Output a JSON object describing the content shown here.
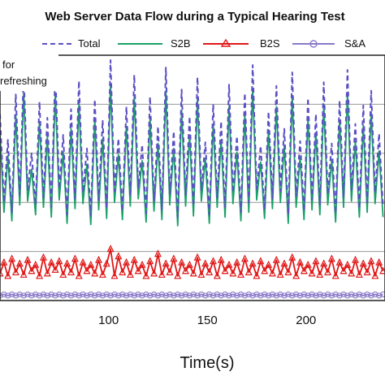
{
  "chart_data": {
    "type": "line",
    "title": "Web Server Data Flow during a Typical Hearing Test",
    "xlabel": "Time(s)",
    "ylabel": "",
    "xlim": [
      45,
      240
    ],
    "ylim": [
      0,
      20
    ],
    "x_ticks": [
      "100",
      "150",
      "200"
    ],
    "x_tick_values": [
      100,
      150,
      200
    ],
    "grid": "horizontal",
    "legend_position": "top",
    "annotation_lines": [
      "for",
      "refreshing"
    ],
    "series": [
      {
        "name": "Total",
        "color": "#5a4fc4",
        "style": "dashed",
        "marker": "none",
        "x": [
          45,
          47,
          49,
          51,
          53,
          55,
          57,
          59,
          61,
          63,
          65,
          67,
          69,
          71,
          73,
          75,
          77,
          79,
          81,
          83,
          85,
          87,
          89,
          91,
          93,
          95,
          97,
          99,
          101,
          103,
          105,
          107,
          109,
          111,
          113,
          115,
          117,
          119,
          121,
          123,
          125,
          127,
          129,
          131,
          133,
          135,
          137,
          139,
          141,
          143,
          145,
          147,
          149,
          151,
          153,
          155,
          157,
          159,
          161,
          163,
          165,
          167,
          169,
          171,
          173,
          175,
          177,
          179,
          181,
          183,
          185,
          187,
          189,
          191,
          193,
          195,
          197,
          199,
          201,
          203,
          205,
          207,
          209,
          211,
          213,
          215,
          217,
          219,
          221,
          223,
          225,
          227,
          229,
          231,
          233,
          235,
          237,
          239
        ],
        "values": [
          15.2,
          8.0,
          13.1,
          7.2,
          16.8,
          8.6,
          18.6,
          9.0,
          12.0,
          7.8,
          16.2,
          8.4,
          14.9,
          7.6,
          18.8,
          9.1,
          13.5,
          7.0,
          15.6,
          8.3,
          17.9,
          8.8,
          12.4,
          6.9,
          16.4,
          8.2,
          14.7,
          7.5,
          19.6,
          8.9,
          13.2,
          7.3,
          15.8,
          8.5,
          18.4,
          9.2,
          12.7,
          7.1,
          16.6,
          8.1,
          14.2,
          7.4,
          19.0,
          8.7,
          13.8,
          6.8,
          17.2,
          8.6,
          15.0,
          7.7,
          18.2,
          9.0,
          12.9,
          7.0,
          16.0,
          8.4,
          14.6,
          7.6,
          17.6,
          8.8,
          13.4,
          7.2,
          16.9,
          8.0,
          19.2,
          9.1,
          12.6,
          7.4,
          15.4,
          8.3,
          17.5,
          8.9,
          14.0,
          7.0,
          18.6,
          8.5,
          13.0,
          7.3,
          16.5,
          8.2,
          15.2,
          7.8,
          17.8,
          8.7,
          12.8,
          7.1,
          16.3,
          8.4,
          18.8,
          9.0,
          14.4,
          7.5,
          15.9,
          8.0,
          17.1,
          8.8,
          13.6,
          7.6
        ]
      },
      {
        "name": "S2B",
        "color": "#1aa067",
        "style": "solid",
        "marker": "none",
        "x": [
          45,
          47,
          49,
          51,
          53,
          55,
          57,
          59,
          61,
          63,
          65,
          67,
          69,
          71,
          73,
          75,
          77,
          79,
          81,
          83,
          85,
          87,
          89,
          91,
          93,
          95,
          97,
          99,
          101,
          103,
          105,
          107,
          109,
          111,
          113,
          115,
          117,
          119,
          121,
          123,
          125,
          127,
          129,
          131,
          133,
          135,
          137,
          139,
          141,
          143,
          145,
          147,
          149,
          151,
          153,
          155,
          157,
          159,
          161,
          163,
          165,
          167,
          169,
          171,
          173,
          175,
          177,
          179,
          181,
          183,
          185,
          187,
          189,
          191,
          193,
          195,
          197,
          199,
          201,
          203,
          205,
          207,
          209,
          211,
          213,
          215,
          217,
          219,
          221,
          223,
          225,
          227,
          229,
          231,
          233,
          235,
          237,
          239
        ],
        "values": [
          13.6,
          7.2,
          11.8,
          6.5,
          15.1,
          7.8,
          16.9,
          8.1,
          10.7,
          7.0,
          14.6,
          7.6,
          13.4,
          6.8,
          16.9,
          8.2,
          12.1,
          6.3,
          14.0,
          7.5,
          16.1,
          7.9,
          11.1,
          6.2,
          14.8,
          7.4,
          13.2,
          6.7,
          17.6,
          8.0,
          11.9,
          6.6,
          14.2,
          7.7,
          16.6,
          8.3,
          11.4,
          6.4,
          14.9,
          7.3,
          12.8,
          6.6,
          17.1,
          7.8,
          12.4,
          6.1,
          15.5,
          7.7,
          13.5,
          6.9,
          16.4,
          8.1,
          11.6,
          6.3,
          14.4,
          7.6,
          13.1,
          6.8,
          15.8,
          7.9,
          12.1,
          6.5,
          15.2,
          7.2,
          17.3,
          8.2,
          11.3,
          6.7,
          13.9,
          7.5,
          15.8,
          8.0,
          12.6,
          6.3,
          16.7,
          7.6,
          11.7,
          6.6,
          14.9,
          7.4,
          13.7,
          7.0,
          16.0,
          7.8,
          11.5,
          6.4,
          14.7,
          7.6,
          16.9,
          8.1,
          13.0,
          6.8,
          14.3,
          7.2,
          15.4,
          7.9,
          12.2,
          6.8
        ]
      },
      {
        "name": "B2S",
        "color": "#e01818",
        "style": "solid",
        "marker": "triangle",
        "x": [
          45,
          47,
          49,
          51,
          53,
          55,
          57,
          59,
          61,
          63,
          65,
          67,
          69,
          71,
          73,
          75,
          77,
          79,
          81,
          83,
          85,
          87,
          89,
          91,
          93,
          95,
          97,
          99,
          101,
          103,
          105,
          107,
          109,
          111,
          113,
          115,
          117,
          119,
          121,
          123,
          125,
          127,
          129,
          131,
          133,
          135,
          137,
          139,
          141,
          143,
          145,
          147,
          149,
          151,
          153,
          155,
          157,
          159,
          161,
          163,
          165,
          167,
          169,
          171,
          173,
          175,
          177,
          179,
          181,
          183,
          185,
          187,
          189,
          191,
          193,
          195,
          197,
          199,
          201,
          203,
          205,
          207,
          209,
          211,
          213,
          215,
          217,
          219,
          221,
          223,
          225,
          227,
          229,
          231,
          233,
          235,
          237,
          239
        ],
        "values": [
          2.2,
          3.1,
          2.0,
          3.4,
          2.3,
          3.0,
          2.1,
          3.3,
          2.4,
          2.9,
          2.0,
          3.5,
          2.2,
          3.1,
          2.5,
          3.2,
          2.1,
          3.0,
          2.3,
          3.4,
          2.0,
          3.1,
          2.4,
          2.9,
          2.2,
          3.3,
          2.1,
          3.0,
          4.2,
          2.0,
          3.6,
          2.3,
          3.1,
          2.1,
          3.3,
          2.4,
          2.9,
          2.0,
          3.2,
          2.2,
          3.8,
          2.1,
          3.0,
          2.3,
          3.4,
          2.0,
          3.1,
          2.4,
          2.9,
          2.2,
          3.5,
          2.1,
          3.0,
          2.3,
          3.2,
          2.0,
          3.3,
          2.4,
          2.9,
          2.2,
          3.1,
          2.1,
          3.4,
          2.3,
          3.0,
          2.0,
          3.2,
          2.4,
          2.9,
          2.2,
          3.3,
          2.1,
          3.0,
          2.3,
          3.5,
          2.0,
          3.1,
          2.4,
          2.9,
          2.2,
          3.2,
          2.1,
          3.0,
          2.3,
          3.4,
          2.0,
          3.1,
          2.4,
          2.9,
          2.2,
          3.3,
          2.1,
          3.0,
          2.3,
          3.2,
          2.0,
          3.1,
          2.4
        ]
      },
      {
        "name": "S&A",
        "color": "#8a7ac8",
        "style": "solid",
        "marker": "circle",
        "x": [
          45,
          47,
          49,
          51,
          53,
          55,
          57,
          59,
          61,
          63,
          65,
          67,
          69,
          71,
          73,
          75,
          77,
          79,
          81,
          83,
          85,
          87,
          89,
          91,
          93,
          95,
          97,
          99,
          101,
          103,
          105,
          107,
          109,
          111,
          113,
          115,
          117,
          119,
          121,
          123,
          125,
          127,
          129,
          131,
          133,
          135,
          137,
          139,
          141,
          143,
          145,
          147,
          149,
          151,
          153,
          155,
          157,
          159,
          161,
          163,
          165,
          167,
          169,
          171,
          173,
          175,
          177,
          179,
          181,
          183,
          185,
          187,
          189,
          191,
          193,
          195,
          197,
          199,
          201,
          203,
          205,
          207,
          209,
          211,
          213,
          215,
          217,
          219,
          221,
          223,
          225,
          227,
          229,
          231,
          233,
          235,
          237,
          239
        ],
        "values": [
          0.4,
          0.5,
          0.4,
          0.5,
          0.4,
          0.5,
          0.4,
          0.5,
          0.4,
          0.5,
          0.4,
          0.5,
          0.4,
          0.5,
          0.4,
          0.5,
          0.4,
          0.5,
          0.4,
          0.5,
          0.4,
          0.5,
          0.4,
          0.5,
          0.4,
          0.5,
          0.4,
          0.5,
          0.4,
          0.5,
          0.4,
          0.5,
          0.4,
          0.5,
          0.4,
          0.5,
          0.4,
          0.5,
          0.4,
          0.5,
          0.4,
          0.5,
          0.4,
          0.5,
          0.4,
          0.5,
          0.4,
          0.5,
          0.4,
          0.5,
          0.4,
          0.5,
          0.4,
          0.5,
          0.4,
          0.5,
          0.4,
          0.5,
          0.4,
          0.5,
          0.4,
          0.5,
          0.4,
          0.5,
          0.4,
          0.5,
          0.4,
          0.5,
          0.4,
          0.5,
          0.4,
          0.5,
          0.4,
          0.5,
          0.4,
          0.5,
          0.4,
          0.5,
          0.4,
          0.5,
          0.4,
          0.5,
          0.4,
          0.5,
          0.4,
          0.5,
          0.4,
          0.5,
          0.4,
          0.5,
          0.4,
          0.5,
          0.4,
          0.5,
          0.4,
          0.5,
          0.4,
          0.5
        ]
      }
    ]
  }
}
